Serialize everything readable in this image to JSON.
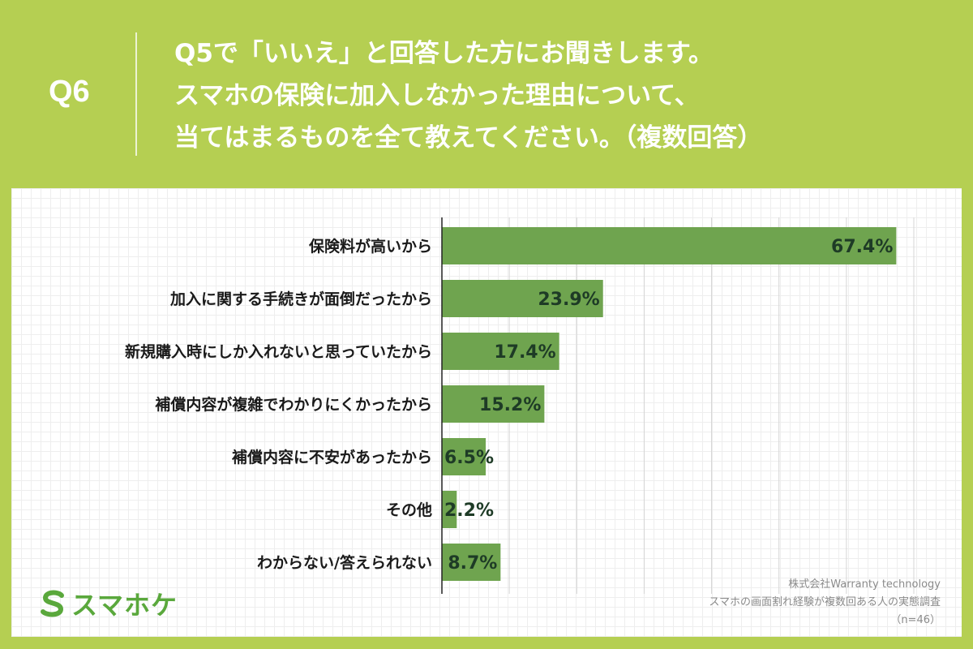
{
  "header": {
    "question_number": "Q6",
    "question_lines": [
      "Q5で「いいえ」と回答した方にお聞きします。",
      "スマホの保険に加入しなかった理由について、",
      "当てはまるものを全て教えてください。（複数回答）"
    ]
  },
  "logo": {
    "text": "スマホケ",
    "icon": "s-logo-icon"
  },
  "source": {
    "company": "株式会社Warranty technology",
    "survey": "スマホの画面割れ経験が複数回ある人の実態調査",
    "sample": "（n=46）"
  },
  "colors": {
    "background": "#b5cf52",
    "bar": "#6fa44f",
    "value_text": "#1e3b26",
    "logo": "#5aa83c"
  },
  "chart_data": {
    "type": "bar",
    "orientation": "horizontal",
    "categories": [
      "保険料が高いから",
      "加入に関する手続きが面倒だったから",
      "新規購入時にしか入れないと思っていたから",
      "補償内容が複雑でわかりにくかったから",
      "補償内容に不安があったから",
      "その他",
      "わからない/答えられない"
    ],
    "values": [
      67.4,
      23.9,
      17.4,
      15.2,
      6.5,
      2.2,
      8.7
    ],
    "value_labels": [
      "67.4%",
      "23.9%",
      "17.4%",
      "15.2%",
      "6.5%",
      "2.2%",
      "8.7%"
    ],
    "xlim": [
      0,
      70
    ],
    "grid": true,
    "legend": "none"
  }
}
